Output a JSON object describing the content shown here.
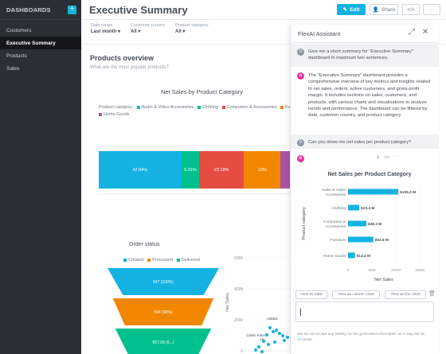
{
  "sidebar": {
    "title": "DASHBOARDS",
    "add_icon": "plus-icon",
    "items": [
      {
        "label": "Customers"
      },
      {
        "label": "Executive Summary",
        "active": true
      },
      {
        "label": "Products"
      },
      {
        "label": "Sales"
      }
    ]
  },
  "header": {
    "title": "Executive Summary",
    "edit_label": "Edit",
    "share_label": "Share",
    "embed_icon": "code-icon",
    "more_icon": "more-icon",
    "accent": "#14b2e2"
  },
  "filters": [
    {
      "label": "Date range",
      "value": "Last month"
    },
    {
      "label": "Customer country",
      "value": "All"
    },
    {
      "label": "Product category",
      "value": "All"
    }
  ],
  "section": {
    "title": "Products overview",
    "subtitle": "What are the most popular products?"
  },
  "chart_data": [
    {
      "type": "bar",
      "title": "Net Sales by Product Category",
      "legend_title": "Product category:",
      "stacked_percent": true,
      "series": [
        {
          "name": "Audio & Video Accessories",
          "value": 42.84,
          "label": "42.84%",
          "color": "#14b2e2"
        },
        {
          "name": "Clothing",
          "value": 9.31,
          "label": "9.31%",
          "color": "#00c18d"
        },
        {
          "name": "Computers & Accessories",
          "value": 23.18,
          "label": "23.18%",
          "color": "#e54d42"
        },
        {
          "name": "Furniture",
          "value": 19,
          "label": "19%",
          "color": "#f18600"
        },
        {
          "name": "Home Goods",
          "value": 5.67,
          "label": "",
          "color": "#ab55a3"
        }
      ]
    },
    {
      "type": "bar",
      "title": "Order status",
      "categories": [
        "Created",
        "Processed",
        "Delivered"
      ],
      "values": [
        647,
        584,
        557
      ],
      "labels": [
        "647 (100%)",
        "584 (90%)",
        "557.09 (9...)"
      ],
      "colors": [
        "#14b2e2",
        "#f18600",
        "#00c18d"
      ]
    },
    {
      "type": "scatter",
      "ylabel": "Net Sales",
      "y_ticks": [
        "600k",
        "400k",
        "200k",
        "0"
      ],
      "point_labels": [
        "Adidas",
        "Calvin Klein",
        "Hi..."
      ],
      "color": "#14b2e2"
    },
    {
      "type": "bar",
      "title": "Net Sales per Product Category",
      "orientation": "horizontal",
      "xlabel": "Net Sales",
      "ylabel": "Product category",
      "categories": [
        "Audio & Video Accessories",
        "Clothing",
        "Computers & Accessories",
        "Furniture",
        "Home Goods"
      ],
      "values": [
        105.2,
        23.4,
        38.3,
        52.8,
        14.4
      ],
      "labels": [
        "$105.2 M",
        "$23.4 M",
        "$38.3 M",
        "$52.8 M",
        "$14.4 M"
      ],
      "x_ticks": [
        "0",
        "50M",
        "100M",
        "150M"
      ],
      "xlim": [
        0,
        150
      ],
      "color": "#14b2e2"
    }
  ],
  "assistant": {
    "title": "FlexAI Assistant",
    "expand_icon": "expand-icon",
    "close_icon": "close-icon",
    "messages": [
      {
        "role": "user",
        "avatar": "D",
        "text": "Give me a short summary for \"Executive Summary\" dashboard in maximum two sentences."
      },
      {
        "role": "assistant",
        "avatar": "✿",
        "text": "The \"Executive Summary\" dashboard provides a comprehensive overview of key metrics and insights related to net sales, orders, active customers, and gross profit margin. It includes sections on sales, customers, and products, with various charts and visualizations to analyze trends and performance. The dashboard can be filtered by date, customer country, and product category."
      },
      {
        "role": "user",
        "avatar": "D",
        "text": "Can you show me net sales per product category?"
      },
      {
        "role": "assistant",
        "avatar": "✿",
        "text": ""
      }
    ],
    "view_buttons": [
      "View as table",
      "View as column chart",
      "View as line chart"
    ],
    "trash_icon": "trash-icon",
    "input_placeholder": "",
    "disclaimer": "We do not accept any liability for the generated information as it may not be accurate."
  }
}
